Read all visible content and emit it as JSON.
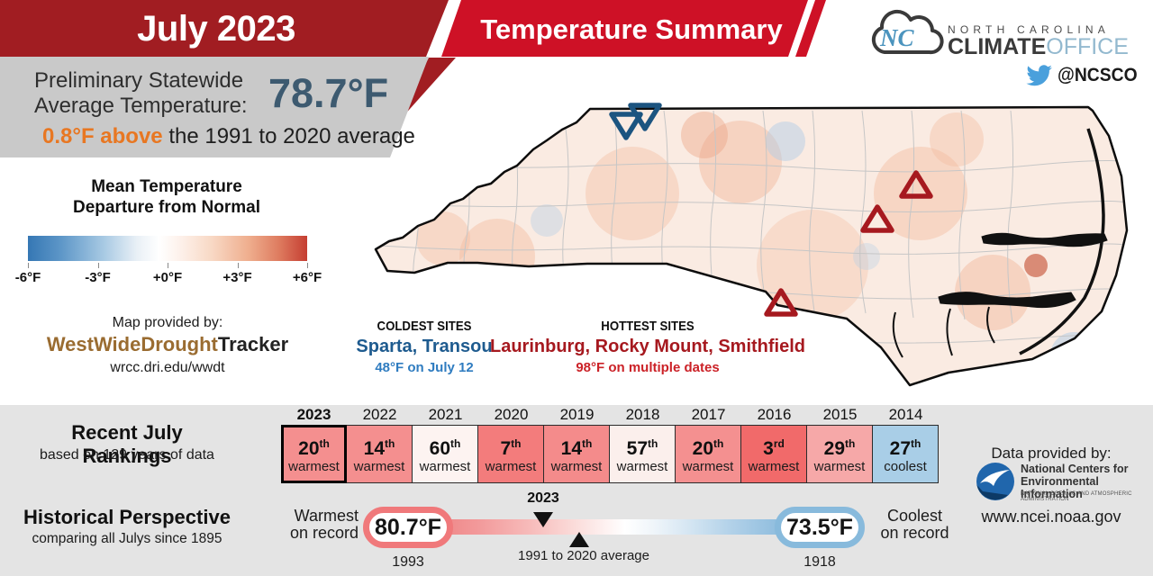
{
  "header": {
    "month_title": "July 2023",
    "summary_title": "Temperature Summary"
  },
  "logo": {
    "cloud_initials": "NC",
    "region": "NORTH CAROLINA",
    "brand_bold": "CLIMATE",
    "brand_light": "OFFICE",
    "twitter_handle": "@NCSCO"
  },
  "statewide": {
    "label_line1": "Preliminary Statewide",
    "label_line2": "Average Temperature:",
    "value": "78.7°F",
    "anomaly_highlight": "0.8°F above",
    "anomaly_rest": " the 1991 to 2020 average"
  },
  "scale": {
    "title_line1": "Mean Temperature",
    "title_line2": "Departure from Normal",
    "ticks": [
      "-6°F",
      "-3°F",
      "+0°F",
      "+3°F",
      "+6°F"
    ]
  },
  "map_credit": {
    "label": "Map provided by:",
    "brand_left": "WestWideDrought",
    "brand_right": "Tracker",
    "url": "wrcc.dri.edu/wwdt"
  },
  "sites": {
    "coldest": {
      "heading": "COLDEST SITES",
      "names": "Sparta, Transou",
      "detail": "48°F on July 12"
    },
    "hottest": {
      "heading": "HOTTEST SITES",
      "names": "Laurinburg, Rocky Mount, Smithfield",
      "detail": "98°F on multiple dates"
    }
  },
  "rankings": {
    "title": "Recent July Rankings",
    "subtitle": "based on 129 years of data",
    "years": [
      {
        "year": "2023",
        "rank": "20",
        "ord": "th",
        "kind": "warmest",
        "color": "#F48F8F",
        "current": true
      },
      {
        "year": "2022",
        "rank": "14",
        "ord": "th",
        "kind": "warmest",
        "color": "#F48F8F",
        "current": false
      },
      {
        "year": "2021",
        "rank": "60",
        "ord": "th",
        "kind": "warmest",
        "color": "#FDF3F1",
        "current": false
      },
      {
        "year": "2020",
        "rank": "7",
        "ord": "th",
        "kind": "warmest",
        "color": "#F37C7C",
        "current": false
      },
      {
        "year": "2019",
        "rank": "14",
        "ord": "th",
        "kind": "warmest",
        "color": "#F48B8B",
        "current": false
      },
      {
        "year": "2018",
        "rank": "57",
        "ord": "th",
        "kind": "warmest",
        "color": "#FBEFEC",
        "current": false
      },
      {
        "year": "2017",
        "rank": "20",
        "ord": "th",
        "kind": "warmest",
        "color": "#F49090",
        "current": false
      },
      {
        "year": "2016",
        "rank": "3",
        "ord": "rd",
        "kind": "warmest",
        "color": "#F16A6A",
        "current": false
      },
      {
        "year": "2015",
        "rank": "29",
        "ord": "th",
        "kind": "warmest",
        "color": "#F6A8A8",
        "current": false
      },
      {
        "year": "2014",
        "rank": "27",
        "ord": "th",
        "kind": "coolest",
        "color": "#A9CEE7",
        "current": false
      }
    ]
  },
  "historical": {
    "title": "Historical Perspective",
    "subtitle": "comparing all Julys since 1895",
    "warmest_label_line1": "Warmest",
    "warmest_label_line2": "on record",
    "warmest_value": "80.7°F",
    "warmest_year": "1993",
    "marker_year": "2023",
    "avg_label": "1991 to 2020 average",
    "coolest_value": "73.5°F",
    "coolest_year": "1918",
    "coolest_label_line1": "Coolest",
    "coolest_label_line2": "on record"
  },
  "provider": {
    "label": "Data provided by:",
    "org_line1": "National Centers for",
    "org_line2": "Environmental Information",
    "org_line3": "NATIONAL OCEANIC AND ATMOSPHERIC ADMINISTRATION",
    "url": "www.ncei.noaa.gov"
  },
  "colors": {
    "banner_dark_red": "#A11D22",
    "banner_bright_red": "#CE1126",
    "panel_gray": "#C9C9C9",
    "bottom_gray": "#E4E4E4",
    "value_steel_blue": "#3D5A70",
    "anomaly_orange": "#E87722",
    "cold_dark_blue": "#1E5B8F",
    "cold_light_blue": "#2F7CC0",
    "hot_dark_red": "#A6191F",
    "hot_bright_red": "#CB2127",
    "coolest_cell_blue": "#A9CEE7",
    "twitter_blue": "#4AA0DC"
  },
  "chart_data": {
    "type": "table",
    "title": "Recent July Rankings",
    "subtitle": "based on 129 years of data",
    "categories": [
      "2023",
      "2022",
      "2021",
      "2020",
      "2019",
      "2018",
      "2017",
      "2016",
      "2015",
      "2014"
    ],
    "values": [
      "20th warmest",
      "14th warmest",
      "60th warmest",
      "7th warmest",
      "14th warmest",
      "57th warmest",
      "20th warmest",
      "3rd warmest",
      "29th warmest",
      "27th coolest"
    ],
    "statewide_average_f": 78.7,
    "departure_from_normal_f": 0.8,
    "departure_scale": {
      "min_f": -6,
      "max_f": 6,
      "ticks": [
        "-6°F",
        "-3°F",
        "+0°F",
        "+3°F",
        "+6°F"
      ]
    },
    "historical_perspective": {
      "type": "range",
      "warmest_f": 80.7,
      "warmest_year": 1993,
      "coolest_f": 73.5,
      "coolest_year": 1918,
      "marker_year": 2023,
      "reference": "1991 to 2020 average"
    },
    "coldest_sites": {
      "names": "Sparta, Transou",
      "value_f": 48,
      "date": "July 12"
    },
    "hottest_sites": {
      "names": "Laurinburg, Rocky Mount, Smithfield",
      "value_f": 98,
      "date": "multiple dates"
    }
  }
}
